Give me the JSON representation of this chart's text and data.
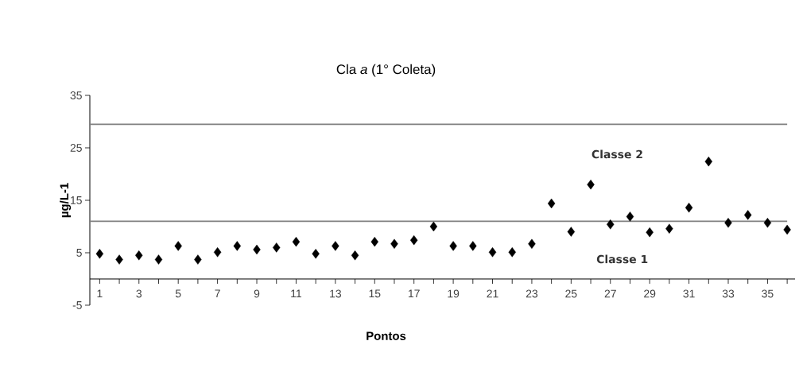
{
  "chart_data": {
    "type": "scatter",
    "title": "Cla *a* (1° Coleta)",
    "xlabel": "Pontos",
    "ylabel": "µg/L-1",
    "categories": [
      "1",
      null,
      "3",
      null,
      "5",
      null,
      "7",
      null,
      "9",
      null,
      "11",
      null,
      "13",
      null,
      "15",
      null,
      "17",
      null,
      "19",
      null,
      "21",
      null,
      "23",
      null,
      "25",
      null,
      "27",
      null,
      "29",
      null,
      "31",
      null,
      "33",
      null,
      "35",
      null
    ],
    "series": [
      {
        "color": "#000000",
        "values": [
          4.8,
          3.7,
          4.5,
          3.7,
          6.3,
          3.7,
          5.1,
          6.3,
          5.6,
          6.0,
          7.1,
          4.8,
          6.3,
          4.5,
          7.1,
          6.7,
          7.4,
          10.0,
          6.3,
          6.3,
          5.1,
          5.1,
          6.7,
          14.4,
          9.0,
          18.0,
          10.4,
          11.9,
          8.9,
          9.6,
          13.6,
          22.4,
          10.7,
          12.2,
          10.7,
          9.4
        ]
      }
    ],
    "marker": "diamond",
    "ylim": [
      -5,
      35
    ],
    "yticks": [
      -5,
      5,
      15,
      25,
      35
    ],
    "ref_lines": [
      {
        "axis": "y",
        "value": 29.5,
        "color": "#808080"
      },
      {
        "axis": "y",
        "value": 11,
        "color": "#808080"
      }
    ],
    "annotations": [
      "Classe 2",
      "Classe 1"
    ]
  }
}
